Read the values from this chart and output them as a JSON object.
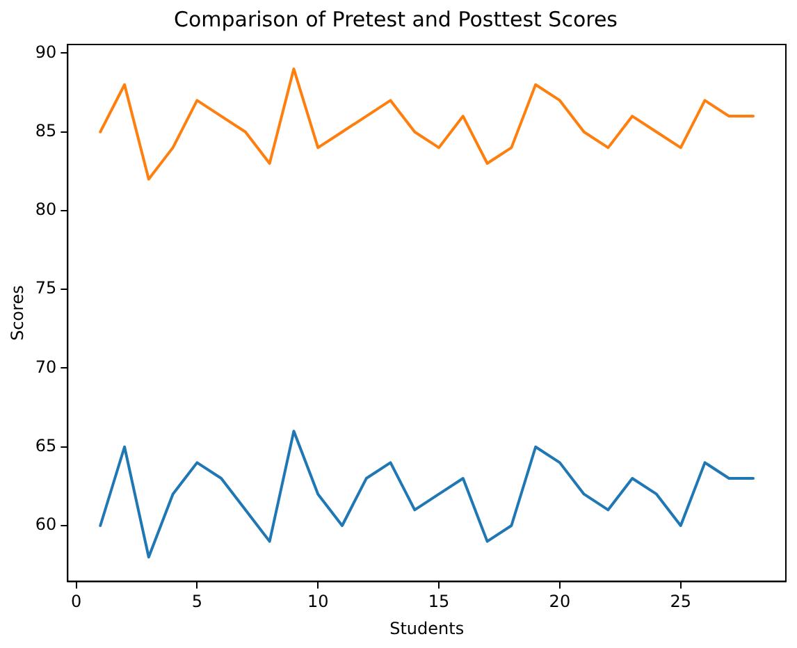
{
  "chart_data": {
    "type": "line",
    "title": "Comparison of Pretest and Posttest Scores",
    "xlabel": "Students",
    "ylabel": "Scores",
    "x": [
      1,
      2,
      3,
      4,
      5,
      6,
      7,
      8,
      9,
      10,
      11,
      12,
      13,
      14,
      15,
      16,
      17,
      18,
      19,
      20,
      21,
      22,
      23,
      24,
      25,
      26,
      27,
      28
    ],
    "series": [
      {
        "color": "#1f77b4",
        "values": [
          60,
          65,
          58,
          62,
          64,
          63,
          61,
          59,
          66,
          62,
          60,
          63,
          64,
          61,
          62,
          63,
          59,
          60,
          65,
          64,
          62,
          61,
          63,
          62,
          60,
          64,
          63,
          63
        ]
      },
      {
        "color": "#ff7f0e",
        "values": [
          85,
          88,
          82,
          84,
          87,
          86,
          85,
          83,
          89,
          84,
          85,
          86,
          87,
          85,
          84,
          86,
          83,
          84,
          88,
          87,
          85,
          84,
          86,
          85,
          84,
          87,
          86,
          86
        ]
      }
    ],
    "xlim": [
      -0.35,
      29.35
    ],
    "xticks": [
      0,
      5,
      10,
      15,
      20,
      25
    ],
    "ylim": [
      56.45,
      90.55
    ],
    "yticks": [
      60,
      65,
      70,
      75,
      80,
      85,
      90
    ],
    "grid": false,
    "legend": false,
    "marker": "none",
    "line_style": "solid"
  }
}
